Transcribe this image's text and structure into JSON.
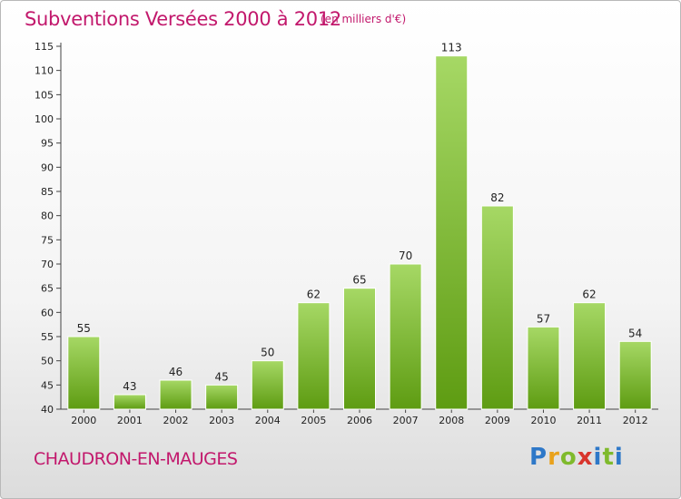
{
  "header": {
    "title": "Subventions Versées 2000 à 2012",
    "unit": "(en milliers d'€)"
  },
  "footer": {
    "commune": "CHAUDRON-EN-MAUGES",
    "logo": "Proxiti"
  },
  "colors": {
    "title": "#c2186c",
    "bar_light": "#9fd35a",
    "bar_dark": "#62a015"
  },
  "chart_data": {
    "type": "bar",
    "title": "Subventions Versées 2000 à 2012",
    "subtitle": "(en milliers d'€)",
    "categories": [
      "2000",
      "2001",
      "2002",
      "2003",
      "2004",
      "2005",
      "2006",
      "2007",
      "2008",
      "2009",
      "2010",
      "2011",
      "2012"
    ],
    "values": [
      55,
      43,
      46,
      45,
      50,
      62,
      65,
      70,
      113,
      82,
      57,
      62,
      54
    ],
    "ylim": [
      40,
      115
    ],
    "yticks": [
      40,
      45,
      50,
      55,
      60,
      65,
      70,
      75,
      80,
      85,
      90,
      95,
      100,
      105,
      110,
      115
    ],
    "grid": false,
    "data_labels": true
  }
}
